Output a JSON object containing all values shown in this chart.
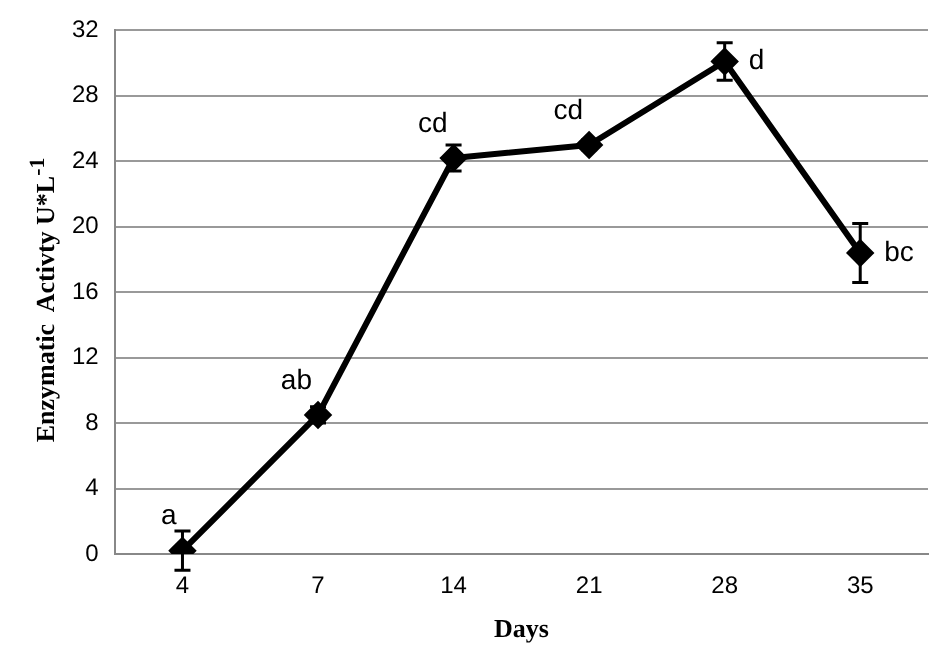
{
  "chart_data": {
    "type": "line",
    "xlabel": "Days",
    "ylabel": "Enzymatic  Activty U*L$^{-1}$",
    "categories": [
      "4",
      "7",
      "14",
      "21",
      "28",
      "35"
    ],
    "series": [
      {
        "color": "#000000",
        "values": [
          0.2,
          8.5,
          24.2,
          25,
          30.1,
          18.4
        ],
        "errors": [
          1.2,
          0.5,
          0.8,
          0.3,
          1.15,
          1.8
        ]
      }
    ],
    "ylim": [
      0,
      32
    ],
    "yticks": [
      0,
      4,
      8,
      12,
      16,
      20,
      24,
      28,
      32
    ],
    "grid": "y",
    "legend": false,
    "marker": "diamond",
    "line_style": "solid",
    "annotations": [
      {
        "text": "a",
        "x": "4",
        "y": 0.2
      },
      {
        "text": "ab",
        "x": "7",
        "y": 8.5
      },
      {
        "text": "cd",
        "x": "14",
        "y": 24.2
      },
      {
        "text": "cd",
        "x": "21",
        "y": 25
      },
      {
        "text": "d",
        "x": "28",
        "y": 30.1
      },
      {
        "text": "bc",
        "x": "35",
        "y": 18.4
      }
    ]
  }
}
